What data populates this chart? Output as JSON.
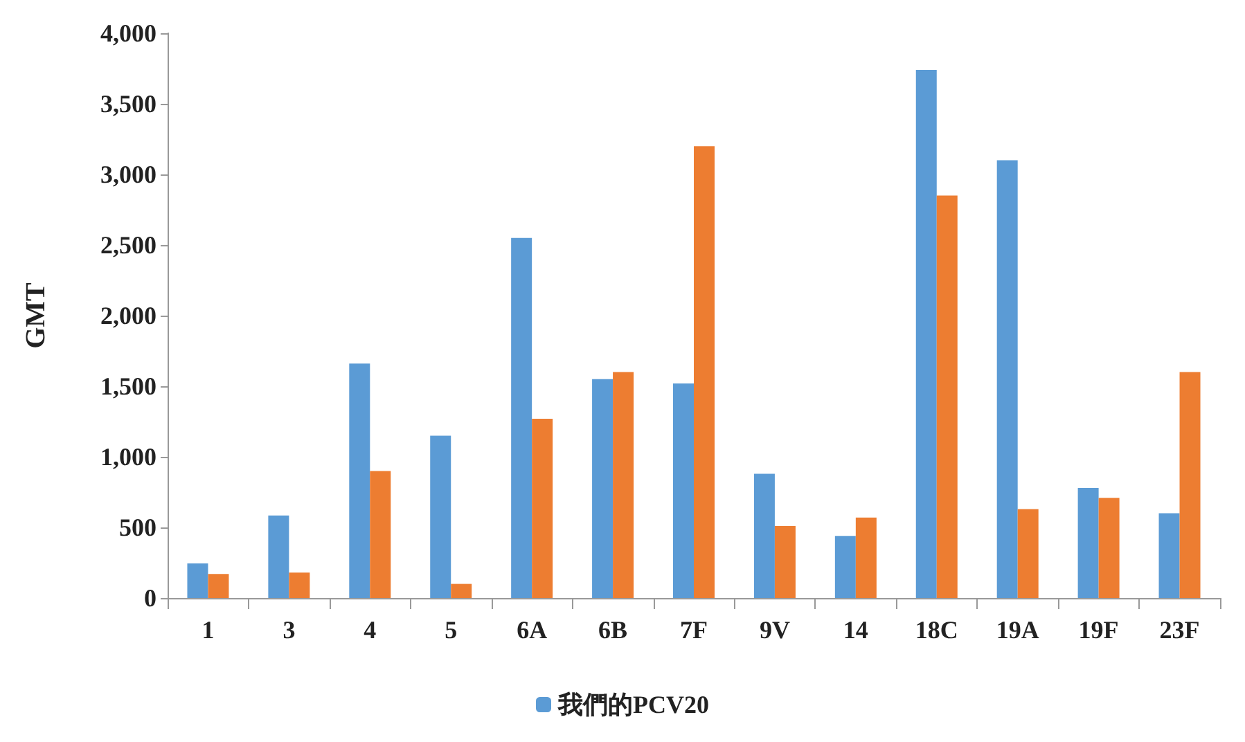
{
  "chart_data": {
    "type": "bar",
    "ylabel": "GMT",
    "categories": [
      "1",
      "3",
      "4",
      "5",
      "6A",
      "6B",
      "7F",
      "9V",
      "14",
      "18C",
      "19A",
      "19F",
      "23F"
    ],
    "series": [
      {
        "name": "我們的PCV20",
        "color": "#5b9bd5",
        "values": [
          245,
          585,
          1660,
          1150,
          2550,
          1550,
          1520,
          880,
          440,
          3740,
          3100,
          780,
          600
        ]
      },
      {
        "color": "#ed7d31",
        "values": [
          170,
          180,
          900,
          100,
          1270,
          1600,
          3200,
          510,
          570,
          2850,
          630,
          710,
          1600
        ]
      }
    ],
    "ylim": [
      0,
      4000
    ],
    "yticks": [
      0,
      {
        "value": 500,
        "label": "500"
      },
      {
        "value": 1000,
        "label": "1,000"
      },
      {
        "value": 1500,
        "label": "1,500"
      },
      {
        "value": 2000,
        "label": "2,000"
      },
      {
        "value": 2500,
        "label": "2,500"
      },
      {
        "value": 3000,
        "label": "3,000"
      },
      {
        "value": 3500,
        "label": "3,500"
      },
      {
        "value": 4000,
        "label": "4,000"
      }
    ],
    "grid": false,
    "legend": "bottom"
  }
}
